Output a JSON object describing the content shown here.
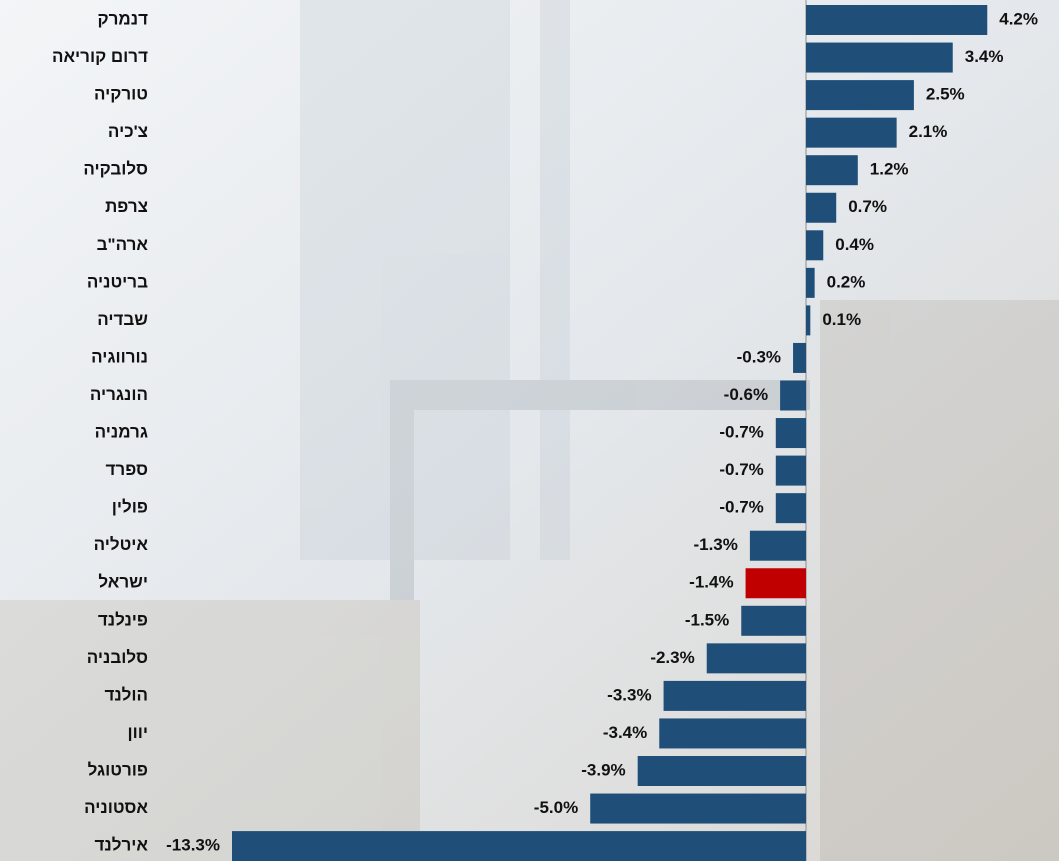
{
  "chart_data": {
    "type": "hbar",
    "categories": [
      "דנמרק",
      "דרום קוריאה",
      "טורקיה",
      "צ'כיה",
      "סלובקיה",
      "צרפת",
      "ארה\"ב",
      "בריטניה",
      "שבדיה",
      "נורווגיה",
      "הונגריה",
      "גרמניה",
      "ספרד",
      "פולין",
      "איטליה",
      "ישראל",
      "פינלנד",
      "סלובניה",
      "הולנד",
      "יוון",
      "פורטוגל",
      "אסטוניה",
      "אירלנד"
    ],
    "values": [
      4.2,
      3.4,
      2.5,
      2.1,
      1.2,
      0.7,
      0.4,
      0.2,
      0.1,
      -0.3,
      -0.6,
      -0.7,
      -0.7,
      -0.7,
      -1.3,
      -1.4,
      -1.5,
      -2.3,
      -3.3,
      -3.4,
      -3.9,
      -5.0,
      -13.3
    ],
    "value_labels": [
      "4.2%",
      "3.4%",
      "2.5%",
      "2.1%",
      "1.2%",
      "0.7%",
      "0.4%",
      "0.2%",
      "0.1%",
      "-0.3%",
      "-0.6%",
      "-0.7%",
      "-0.7%",
      "-0.7%",
      "-1.3%",
      "-1.4%",
      "-1.5%",
      "-2.3%",
      "-3.3%",
      "-3.4%",
      "-3.9%",
      "-5.0%",
      "-13.3%"
    ],
    "colors": [
      "#1f4e79",
      "#1f4e79",
      "#1f4e79",
      "#1f4e79",
      "#1f4e79",
      "#1f4e79",
      "#1f4e79",
      "#1f4e79",
      "#1f4e79",
      "#1f4e79",
      "#1f4e79",
      "#1f4e79",
      "#1f4e79",
      "#1f4e79",
      "#1f4e79",
      "#c00000",
      "#1f4e79",
      "#1f4e79",
      "#1f4e79",
      "#1f4e79",
      "#1f4e79",
      "#1f4e79",
      "#1f4e79"
    ]
  }
}
